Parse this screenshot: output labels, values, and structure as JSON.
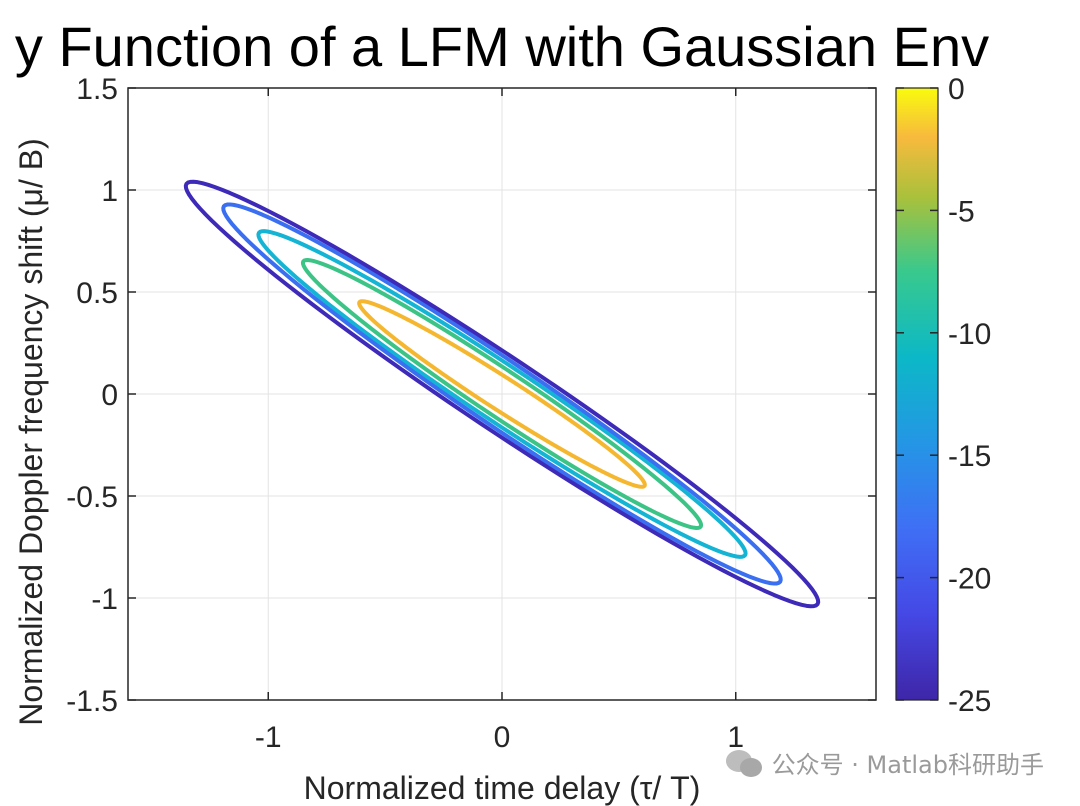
{
  "chart_data": {
    "type": "contour",
    "title": "y Function of a LFM with Gaussian Env",
    "xlabel": "Normalized time delay (τ/ T)",
    "ylabel": "Normalized Doppler frequency shift (μ/ B)",
    "xlim": [
      -1.6,
      1.6
    ],
    "ylim": [
      -1.5,
      1.5
    ],
    "xticks": [
      -1,
      0,
      1
    ],
    "xtick_labels": [
      "-1",
      "0",
      "1"
    ],
    "yticks": [
      -1.5,
      -1,
      -0.5,
      0,
      0.5,
      1,
      1.5
    ],
    "ytick_labels": [
      "-1.5",
      "-1",
      "-0.5",
      "0",
      "0.5",
      "1",
      "1.5"
    ],
    "grid": true,
    "colormap": "parula",
    "colorbar": {
      "range": [
        -25,
        0
      ],
      "ticks": [
        0,
        -5,
        -10,
        -15,
        -20,
        -25
      ],
      "tick_labels": [
        "0",
        "-5",
        "-10",
        "-15",
        "-20",
        "-25"
      ]
    },
    "contour_levels": [
      {
        "level": -5,
        "x_extent": 0.61,
        "y_at_x_extent": -0.45,
        "color": "#f5b72f"
      },
      {
        "level": -10,
        "x_extent": 0.85,
        "y_at_x_extent": -0.65,
        "color": "#3cc486"
      },
      {
        "level": -15,
        "x_extent": 1.04,
        "y_at_x_extent": -0.79,
        "color": "#13b4d4"
      },
      {
        "level": -20,
        "x_extent": 1.19,
        "y_at_x_extent": -0.92,
        "color": "#3a6ff2"
      },
      {
        "level": -25,
        "x_extent": 1.35,
        "y_at_x_extent": -1.03,
        "color": "#3e2ab8"
      }
    ],
    "contour_width_ratio": 0.096
  },
  "watermark": {
    "text": "公众号 · Matlab科研助手",
    "icon": "wechat-icon"
  }
}
